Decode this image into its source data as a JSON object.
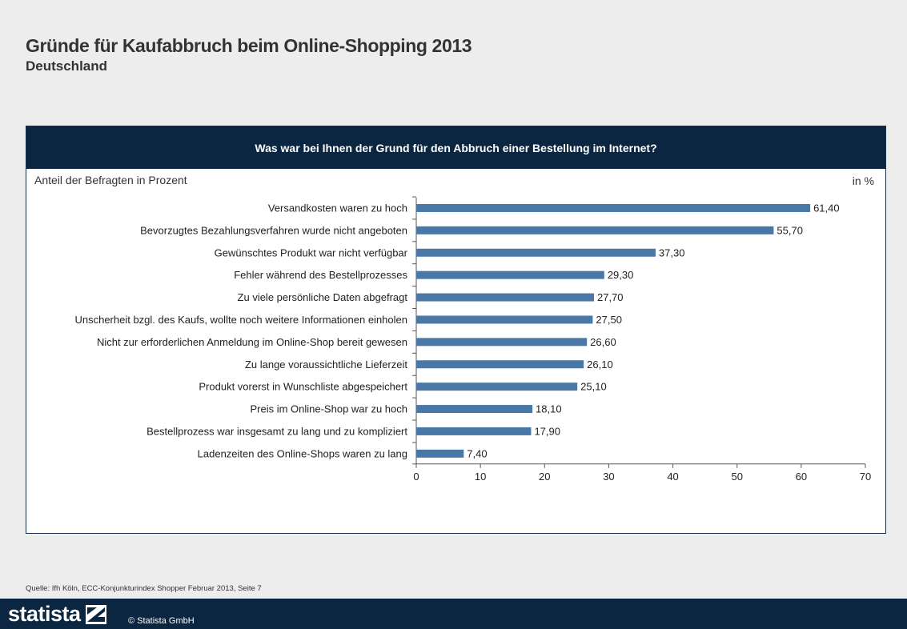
{
  "header": {
    "title": "Gründe für Kaufabbruch beim Online-Shopping 2013",
    "subtitle": "Deutschland"
  },
  "panel": {
    "question": "Was war bei Ihnen der Grund für den Abbruch  einer Bestellung im Internet?"
  },
  "footer": {
    "source": "Quelle: Ifh Köln, ECC-Konjunkturindex Shopper Februar 2013, Seite 7",
    "brand": "statista",
    "copyright": "© Statista GmbH"
  },
  "colors": {
    "bar": "#4a78a6",
    "header_bg": "#0b2640"
  },
  "chart_data": {
    "type": "bar",
    "orientation": "horizontal",
    "ylabel": "Anteil der Befragten in Prozent",
    "unit": "in %",
    "xlim": [
      0,
      70
    ],
    "xticks": [
      0,
      10,
      20,
      30,
      40,
      50,
      60,
      70
    ],
    "grid": false,
    "categories": [
      "Versandkosten waren zu hoch",
      "Bevorzugtes Bezahlungsverfahren wurde nicht angeboten",
      "Gewünschtes Produkt war nicht verfügbar",
      "Fehler während des Bestellprozesses",
      "Zu viele persönliche Daten abgefragt",
      "Unscherheit bzgl. des Kaufs, wollte noch weitere Informationen einholen",
      "Nicht zur erforderlichen Anmeldung im Online-Shop bereit gewesen",
      "Zu lange voraussichtliche Lieferzeit",
      "Produkt vorerst in Wunschliste abgespeichert",
      "Preis im Online-Shop war zu hoch",
      "Bestellprozess war insgesamt zu lang und zu kompliziert",
      "Ladenzeiten des Online-Shops waren zu lang"
    ],
    "values": [
      61.4,
      55.7,
      37.3,
      29.3,
      27.7,
      27.5,
      26.6,
      26.1,
      25.1,
      18.1,
      17.9,
      7.4
    ],
    "value_labels": [
      "61,40",
      "55,70",
      "37,30",
      "29,30",
      "27,70",
      "27,50",
      "26,60",
      "26,10",
      "25,10",
      "18,10",
      "17,90",
      "7,40"
    ]
  }
}
